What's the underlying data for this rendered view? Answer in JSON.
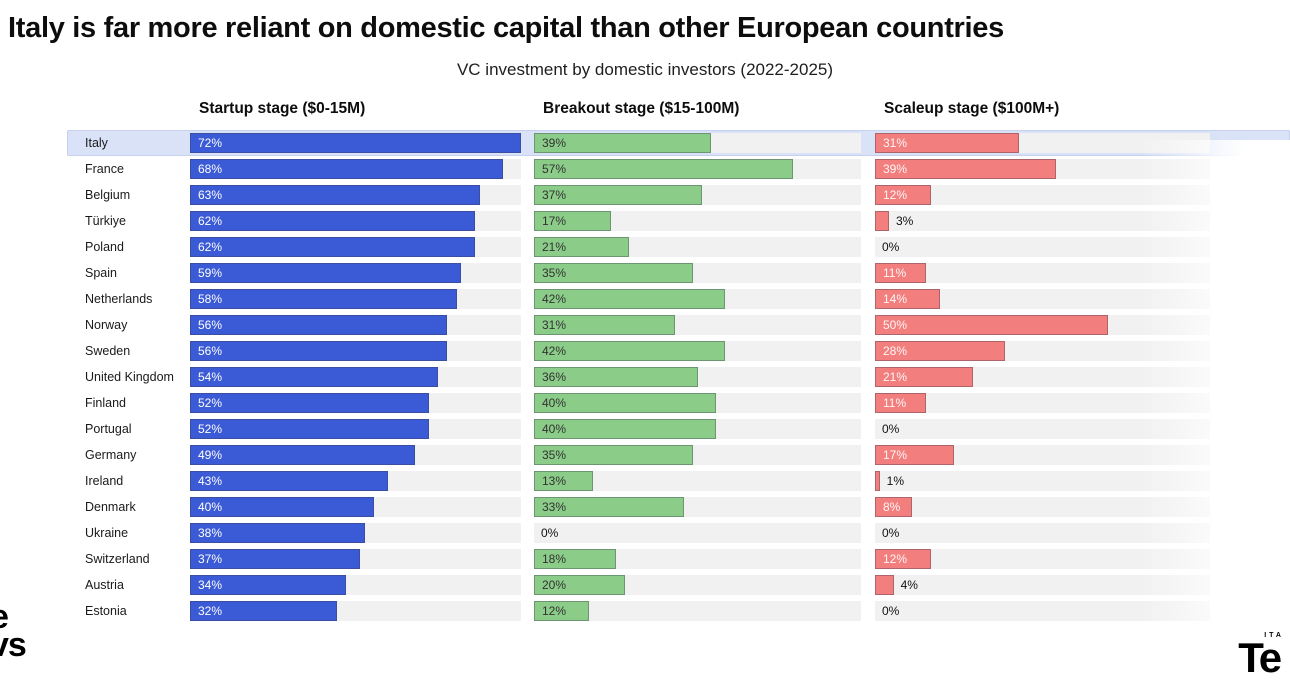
{
  "header": {
    "title": "Italy is far more reliant on domestic capital than other European countries",
    "subtitle": "VC investment by domestic investors (2022-2025)"
  },
  "columns": [
    {
      "key": "startup",
      "label": "Startup stage ($0-15M)"
    },
    {
      "key": "breakout",
      "label": "Breakout stage ($15-100M)"
    },
    {
      "key": "scaleup",
      "label": "Scaleup stage ($100M+)"
    }
  ],
  "colors": {
    "startup_bar": "#3a5ad6",
    "breakout_bar": "#8acc88",
    "scaleup_bar": "#f37e7e",
    "track": "#f1f1f2",
    "highlight_row": "#d9e2f7"
  },
  "highlighted_country": "Italy",
  "branding": {
    "bottom_left_line1": "e",
    "bottom_left_line2": "vs",
    "bottom_right_small": "ITA",
    "bottom_right_text": "Te"
  },
  "chart_data": {
    "type": "bar",
    "orientation": "horizontal",
    "title": "Italy is far more reliant on domestic capital than other European countries",
    "subtitle": "VC investment by domestic investors (2022-2025)",
    "unit": "%",
    "label_format": "{value}%",
    "scale_max_percent": 72,
    "grid": false,
    "legend_position": "column-headers",
    "categories": [
      "Italy",
      "France",
      "Belgium",
      "Türkiye",
      "Poland",
      "Spain",
      "Netherlands",
      "Norway",
      "Sweden",
      "United Kingdom",
      "Finland",
      "Portugal",
      "Germany",
      "Ireland",
      "Denmark",
      "Ukraine",
      "Switzerland",
      "Austria",
      "Estonia"
    ],
    "series": [
      {
        "name": "Startup stage ($0-15M)",
        "color": "#3a5ad6",
        "values": [
          72,
          68,
          63,
          62,
          62,
          59,
          58,
          56,
          56,
          54,
          52,
          52,
          49,
          43,
          40,
          38,
          37,
          34,
          32
        ]
      },
      {
        "name": "Breakout stage ($15-100M)",
        "color": "#8acc88",
        "values": [
          39,
          57,
          37,
          17,
          21,
          35,
          42,
          31,
          42,
          36,
          40,
          40,
          35,
          13,
          33,
          0,
          18,
          20,
          12
        ]
      },
      {
        "name": "Scaleup stage ($100M+)",
        "color": "#f37e7e",
        "values": [
          31,
          39,
          12,
          3,
          0,
          11,
          14,
          50,
          28,
          21,
          11,
          0,
          17,
          1,
          8,
          0,
          12,
          4,
          0
        ]
      }
    ]
  }
}
